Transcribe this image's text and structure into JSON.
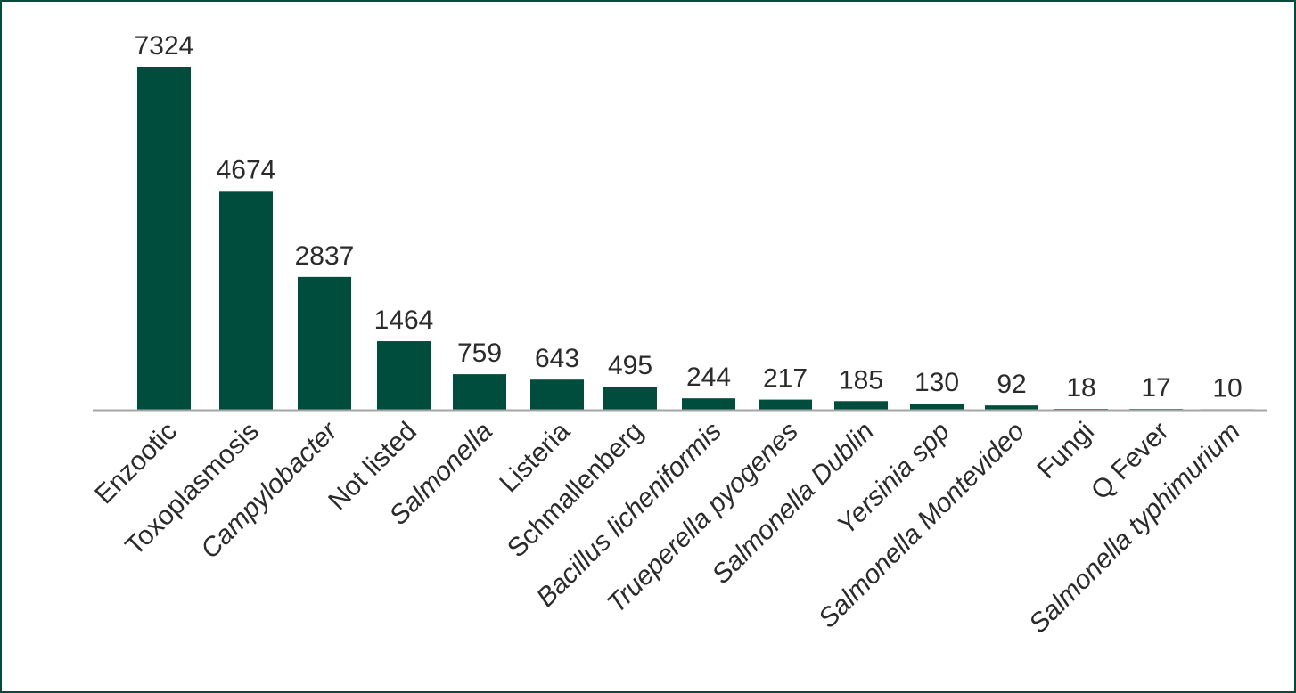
{
  "chart_data": {
    "type": "bar",
    "title": "",
    "xlabel": "",
    "ylabel": "",
    "ylim": [
      0,
      7324
    ],
    "grid": false,
    "legend": "none",
    "bar_color": "#004d3d",
    "axis_color": "#a6a6a6",
    "categories": [
      "Enzootic",
      "Toxoplasmosis",
      "Campylobacter",
      "Not listed",
      "Salmonella",
      "Listeria",
      "Schmallenberg",
      "Bacillus licheniformis",
      "Trueperella pyogenes",
      "Salmonella Dublin",
      "Yersinia spp",
      "Salmonella Montevideo",
      "Fungi",
      "Q Fever",
      "Salmonella typhimurium"
    ],
    "italic_categories": [
      "Campylobacter",
      "Salmonella",
      "Bacillus licheniformis",
      "Trueperella pyogenes",
      "Salmonella Dublin",
      "Yersinia spp",
      "Salmonella Montevideo",
      "Salmonella typhimurium"
    ],
    "values": [
      7324,
      4674,
      2837,
      1464,
      759,
      643,
      495,
      244,
      217,
      185,
      130,
      92,
      18,
      17,
      10
    ],
    "value_labels": [
      "7324",
      "4674",
      "2837",
      "1464",
      "759",
      "643",
      "495",
      "244",
      "217",
      "185",
      "130",
      "92",
      "18",
      "17",
      "10"
    ]
  }
}
